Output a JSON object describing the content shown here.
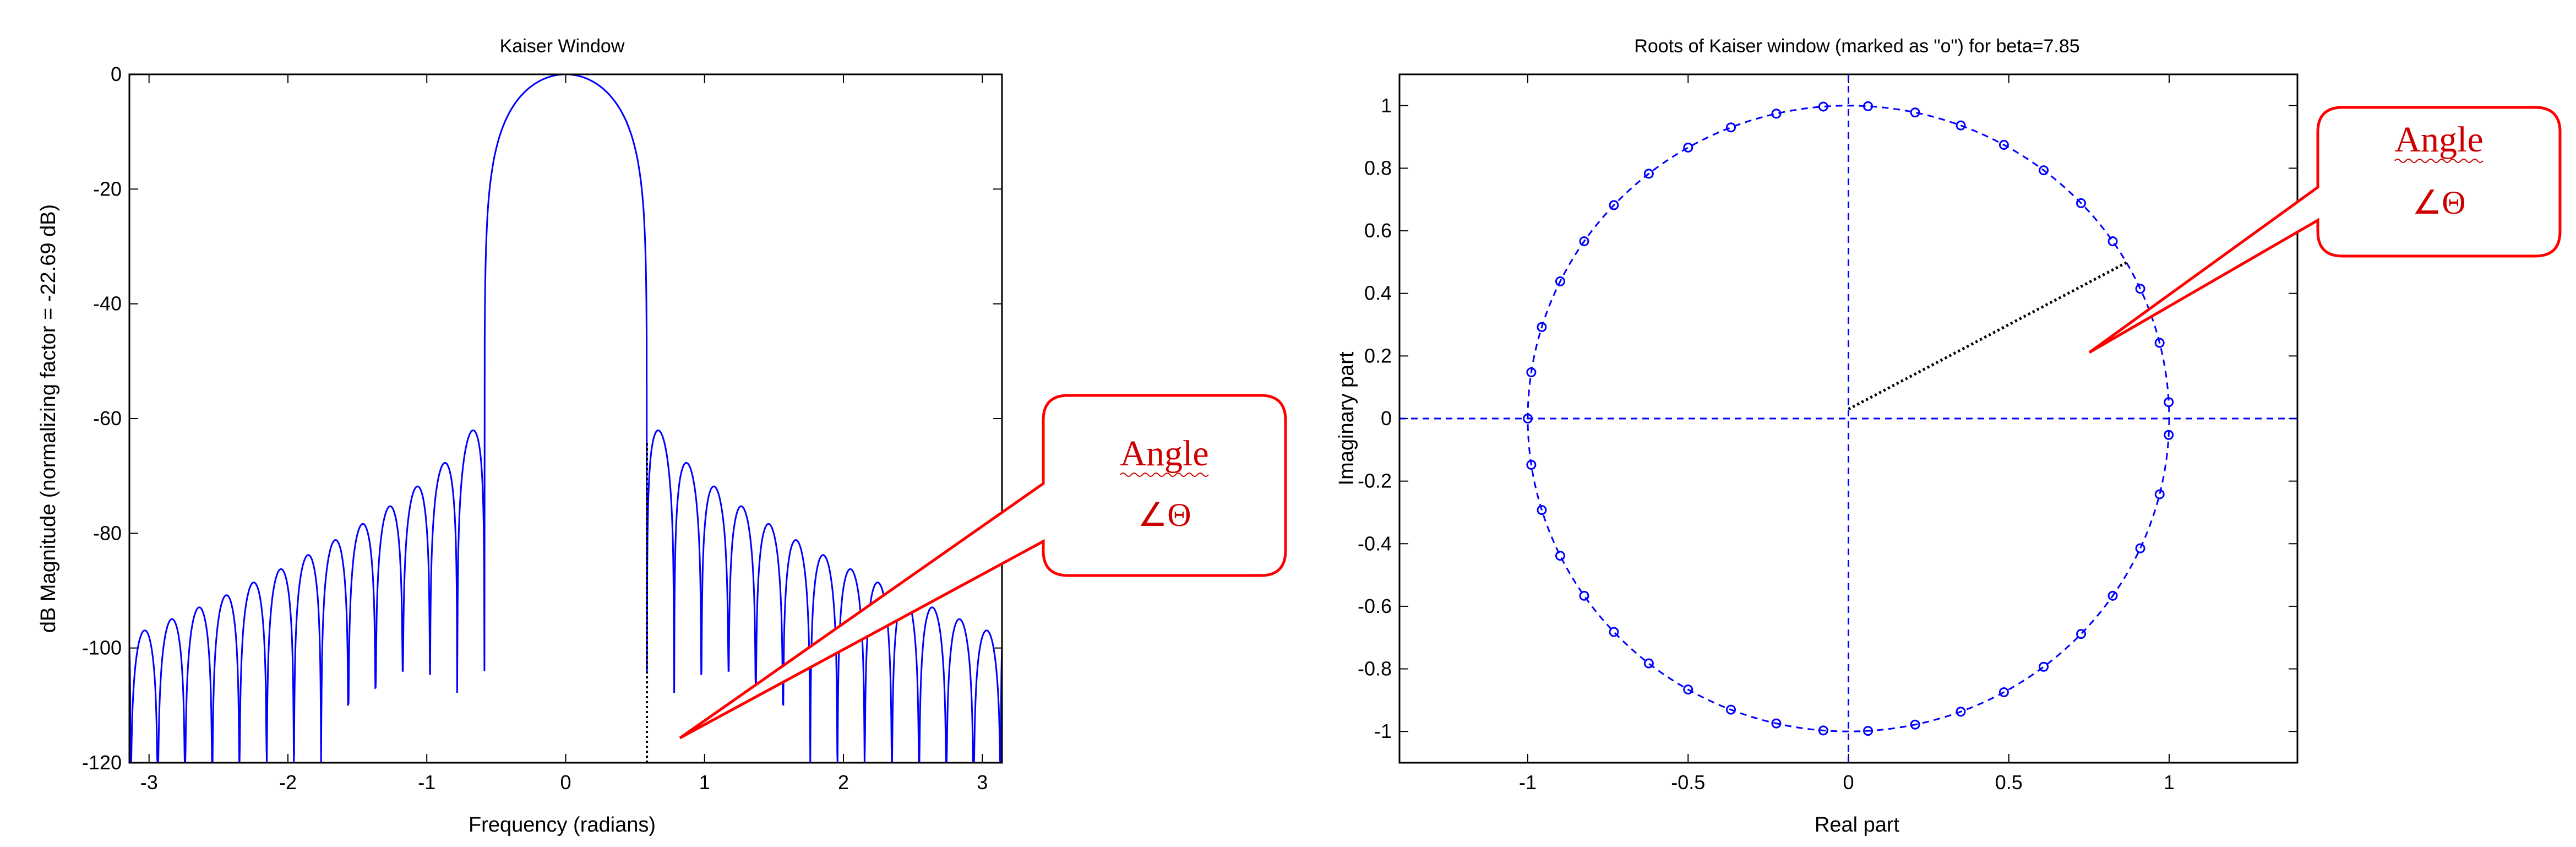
{
  "colors": {
    "trace": "#0000ff",
    "callout": "#ff0000",
    "callout_text": "#cc0000",
    "axes": "#000000",
    "guide": "#000000"
  },
  "callout": {
    "line1": "Angle",
    "line2": "∠Θ"
  },
  "chart_data": [
    {
      "type": "line",
      "title": "Kaiser Window",
      "xlabel": "Frequency (radians)",
      "ylabel": "dB Magnitude (normalizing factor = -22.69 dB)",
      "xlim": [
        -3.1416,
        3.1416
      ],
      "ylim": [
        -120,
        0
      ],
      "xticks": [
        -3,
        -2,
        -1,
        0,
        1,
        2,
        3
      ],
      "xtick_labels": [
        "-3",
        "-2",
        "-1",
        "0",
        "1",
        "2",
        "3"
      ],
      "yticks": [
        0,
        -20,
        -40,
        -60,
        -80,
        -100,
        -120
      ],
      "ytick_labels": [
        "0",
        "-20",
        "-40",
        "-60",
        "-80",
        "-100",
        "-120"
      ],
      "grid": false,
      "series": [
        {
          "mainlobe_halfwidth": 0.585,
          "first_sidelobe_db": -56.5,
          "last_sidelobe_db": -98,
          "null_floor_db": -120,
          "sidelobe_period": 0.196
        }
      ],
      "marker_line": {
        "x": 0.585,
        "y_from": -120,
        "y_to": -64
      }
    },
    {
      "type": "scatter",
      "title": "Roots of Kaiser window (marked as \"o\") for beta=7.85",
      "xlabel": "Real part",
      "ylabel": "Imaginary part",
      "xlim": [
        -1.4,
        1.4
      ],
      "ylim": [
        -1.1,
        1.1
      ],
      "xticks": [
        -1,
        -0.5,
        0,
        0.5,
        1
      ],
      "xtick_labels": [
        "-1",
        "-0.5",
        "0",
        "0.5",
        "1"
      ],
      "yticks": [
        1,
        0.8,
        0.6,
        0.4,
        0.2,
        0,
        -0.2,
        -0.4,
        -0.6,
        -0.8,
        -1
      ],
      "ytick_labels": [
        "1",
        "0.8",
        "0.6",
        "0.4",
        "0.2",
        "0",
        "-0.2",
        "-0.4",
        "-0.6",
        "-0.8",
        "-1"
      ],
      "grid": false,
      "unit_circle": true,
      "roots_angles_deg": [
        3,
        14,
        24.5,
        34.5,
        43.5,
        52.5,
        61,
        69.5,
        78,
        86.5,
        94.5,
        103,
        111.5,
        120,
        128.5,
        137,
        145.5,
        154,
        163,
        171.5,
        180
      ],
      "angle_line": {
        "x1": 0,
        "y1": 0.03,
        "x2": 0.87,
        "y2": 0.5
      }
    }
  ]
}
